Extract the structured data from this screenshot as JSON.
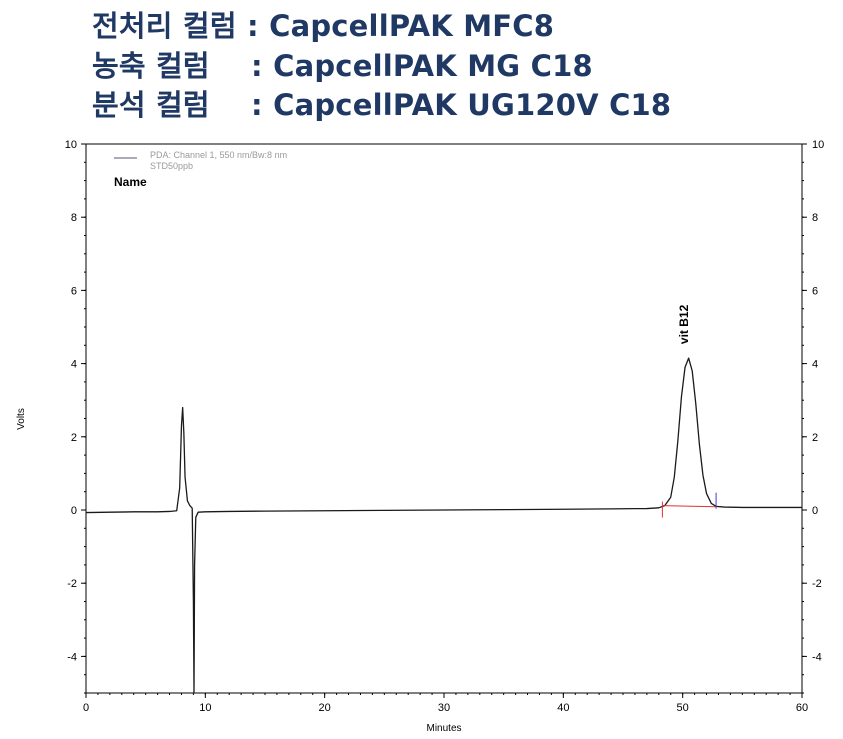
{
  "header": {
    "lines": [
      "전처리 컬럼 : CapcellPAK MFC8",
      "농축 컬럼    : CapcellPAK MG C18",
      "분석 컬럼    : CapcellPAK UG120V C18"
    ]
  },
  "chart_data": {
    "type": "line",
    "xlabel": "Minutes",
    "ylabel": "Volts",
    "xlim": [
      0,
      60
    ],
    "ylim": [
      -5,
      10
    ],
    "xticks": [
      0,
      10,
      20,
      30,
      40,
      50,
      60
    ],
    "yticks": [
      -4,
      -2,
      0,
      2,
      4,
      6,
      8,
      10
    ],
    "grid": false,
    "legend": {
      "placement": "top-left",
      "entries": [
        "PDA: Channel 1, 550 nm/Bw:8 nm",
        "STD50ppb"
      ],
      "name_header": "Name",
      "color": "#555577"
    },
    "series": [
      {
        "color": "#1a1a1a",
        "x": [
          0,
          2,
          4,
          6,
          7,
          7.6,
          7.85,
          8.0,
          8.1,
          8.2,
          8.3,
          8.5,
          8.7,
          8.9,
          9.0,
          9.05,
          9.1,
          9.2,
          9.4,
          10,
          12,
          15,
          20,
          25,
          30,
          35,
          40,
          44,
          47,
          48,
          48.5,
          49.0,
          49.3,
          49.6,
          49.9,
          50.2,
          50.5,
          50.8,
          51.1,
          51.4,
          51.7,
          52.0,
          52.4,
          52.8,
          53.5,
          55,
          58,
          60
        ],
        "y": [
          -0.07,
          -0.06,
          -0.05,
          -0.05,
          -0.04,
          -0.02,
          0.6,
          2.3,
          2.8,
          2.1,
          0.9,
          0.25,
          0.12,
          0.05,
          -2.5,
          -5,
          -1.5,
          -0.2,
          -0.06,
          -0.05,
          -0.04,
          -0.03,
          -0.02,
          -0.01,
          0.0,
          0.01,
          0.02,
          0.03,
          0.04,
          0.06,
          0.12,
          0.35,
          0.9,
          1.9,
          3.1,
          3.9,
          4.15,
          3.8,
          2.9,
          1.8,
          0.95,
          0.45,
          0.18,
          0.1,
          0.08,
          0.07,
          0.07,
          0.07
        ]
      }
    ],
    "annotations": [
      {
        "label": "vit B12",
        "x": 50.1,
        "y": 4.15,
        "rotation": "vertical"
      }
    ],
    "integration": {
      "baseline_color": "#e03030",
      "baseline_start": {
        "x": 48.3,
        "y": 0.12
      },
      "baseline_end": {
        "x": 52.8,
        "y": 0.09
      },
      "start_marker_color": "#e03030",
      "end_marker_color": "#3c3cd0"
    }
  }
}
